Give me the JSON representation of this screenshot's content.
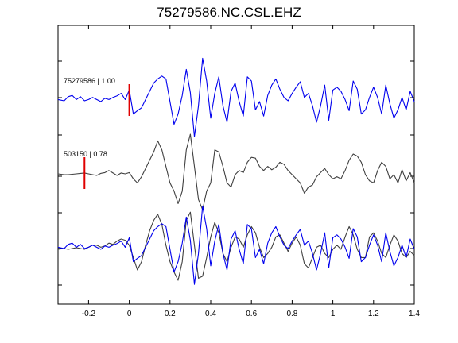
{
  "chart_data": {
    "type": "line",
    "title": "75279586.NC.CSL.EHZ",
    "xlabel": "",
    "ylabel": "",
    "xlim": [
      -0.35,
      1.4
    ],
    "x_ticks": [
      -0.2,
      0,
      0.2,
      0.4,
      0.6,
      0.8,
      1,
      1.2,
      1.4
    ],
    "x_tick_labels": [
      "-0.2",
      "0",
      "0.2",
      "0.4",
      "0.6",
      "0.8",
      "1",
      "1.2",
      "1.4"
    ],
    "grid": false,
    "legend": "none",
    "traces": [
      {
        "label": "75279586 | 1.00",
        "color": "#0000ee",
        "pick_time": 0.0,
        "offset": 3,
        "x": [
          -0.35,
          -0.32,
          -0.3,
          -0.28,
          -0.26,
          -0.24,
          -0.22,
          -0.2,
          -0.18,
          -0.16,
          -0.14,
          -0.12,
          -0.1,
          -0.08,
          -0.06,
          -0.04,
          -0.02,
          0,
          0.02,
          0.04,
          0.06,
          0.08,
          0.1,
          0.12,
          0.14,
          0.16,
          0.18,
          0.2,
          0.22,
          0.24,
          0.26,
          0.28,
          0.3,
          0.32,
          0.34,
          0.36,
          0.38,
          0.4,
          0.42,
          0.44,
          0.46,
          0.48,
          0.5,
          0.52,
          0.54,
          0.56,
          0.58,
          0.6,
          0.62,
          0.64,
          0.66,
          0.68,
          0.7,
          0.72,
          0.74,
          0.76,
          0.78,
          0.8,
          0.82,
          0.84,
          0.86,
          0.88,
          0.9,
          0.92,
          0.94,
          0.96,
          0.98,
          1,
          1.02,
          1.04,
          1.06,
          1.08,
          1.1,
          1.12,
          1.14,
          1.16,
          1.18,
          1.2,
          1.22,
          1.24,
          1.26,
          1.28,
          1.3,
          1.32,
          1.34,
          1.36,
          1.38,
          1.4
        ],
        "y": [
          0.05,
          0.02,
          0.12,
          0.15,
          0.05,
          0.12,
          0.02,
          0.05,
          0.1,
          0.05,
          0.0,
          0.08,
          0.05,
          0.1,
          0.14,
          0.2,
          0.05,
          0.28,
          -0.3,
          -0.22,
          -0.15,
          0.05,
          0.25,
          0.45,
          0.55,
          0.62,
          0.55,
          0.0,
          -0.55,
          -0.3,
          0.15,
          0.78,
          0.22,
          -0.85,
          -0.1,
          1.05,
          0.5,
          -0.4,
          0.2,
          0.6,
          -0.1,
          -0.5,
          0.25,
          0.45,
          0.0,
          -0.35,
          0.6,
          0.5,
          -0.2,
          0.0,
          -0.35,
          0.15,
          0.4,
          0.55,
          0.3,
          0.1,
          0.02,
          0.2,
          0.35,
          0.48,
          0.1,
          0.2,
          -0.1,
          -0.5,
          -0.1,
          0.4,
          -0.45,
          0.28,
          0.35,
          0.25,
          0.05,
          -0.22,
          0.5,
          0.3,
          -0.3,
          -0.2,
          0.1,
          0.35,
          0.1,
          -0.3,
          0.4,
          -0.05,
          -0.4,
          -0.2,
          0.1,
          -0.2,
          0.25,
          0.0
        ]
      },
      {
        "label": "503150 | 0.78",
        "color": "#404040",
        "pick_time": -0.22,
        "offset": 2,
        "x": [
          -0.35,
          -0.32,
          -0.3,
          -0.28,
          -0.26,
          -0.24,
          -0.22,
          -0.2,
          -0.18,
          -0.16,
          -0.14,
          -0.12,
          -0.1,
          -0.08,
          -0.06,
          -0.04,
          -0.02,
          0,
          0.02,
          0.04,
          0.06,
          0.08,
          0.1,
          0.12,
          0.14,
          0.16,
          0.18,
          0.2,
          0.22,
          0.24,
          0.26,
          0.28,
          0.3,
          0.32,
          0.34,
          0.36,
          0.38,
          0.4,
          0.42,
          0.44,
          0.46,
          0.48,
          0.5,
          0.52,
          0.54,
          0.56,
          0.58,
          0.6,
          0.62,
          0.64,
          0.66,
          0.68,
          0.7,
          0.72,
          0.74,
          0.76,
          0.78,
          0.8,
          0.82,
          0.84,
          0.86,
          0.88,
          0.9,
          0.92,
          0.94,
          0.96,
          0.98,
          1,
          1.02,
          1.04,
          1.06,
          1.08,
          1.1,
          1.12,
          1.14,
          1.16,
          1.18,
          1.2,
          1.22,
          1.24,
          1.26,
          1.28,
          1.3,
          1.32,
          1.34,
          1.36,
          1.38,
          1.4
        ],
        "y": [
          0.02,
          0.0,
          0.0,
          0.01,
          0.02,
          0.03,
          0.04,
          0.02,
          0.0,
          -0.02,
          0.03,
          0.05,
          0.1,
          0.04,
          -0.02,
          0.04,
          0.02,
          0.05,
          -0.1,
          -0.2,
          -0.05,
          0.15,
          0.35,
          0.55,
          0.82,
          0.6,
          0.2,
          -0.2,
          -0.4,
          -0.7,
          -0.4,
          0.6,
          0.98,
          0.2,
          -0.6,
          -0.85,
          -0.4,
          -0.2,
          0.6,
          0.55,
          0.2,
          -0.2,
          -0.3,
          0.0,
          0.1,
          0.05,
          0.3,
          0.42,
          0.4,
          0.2,
          0.1,
          0.2,
          0.12,
          0.18,
          0.3,
          0.25,
          0.1,
          0.0,
          -0.1,
          -0.2,
          -0.45,
          -0.3,
          -0.25,
          -0.05,
          0.05,
          0.15,
          0.0,
          -0.1,
          -0.05,
          -0.1,
          0.1,
          0.35,
          0.5,
          0.45,
          0.3,
          0.0,
          -0.15,
          -0.2,
          0.1,
          0.3,
          0.2,
          -0.1,
          0.0,
          -0.2,
          0.12,
          -0.15,
          0.05,
          -0.2
        ]
      },
      {
        "label": "",
        "color": "#0000ee",
        "offset": 1,
        "x": [
          -0.35,
          -0.32,
          -0.3,
          -0.28,
          -0.26,
          -0.24,
          -0.22,
          -0.2,
          -0.18,
          -0.16,
          -0.14,
          -0.12,
          -0.1,
          -0.08,
          -0.06,
          -0.04,
          -0.02,
          0,
          0.02,
          0.04,
          0.06,
          0.08,
          0.1,
          0.12,
          0.14,
          0.16,
          0.18,
          0.2,
          0.22,
          0.24,
          0.26,
          0.28,
          0.3,
          0.32,
          0.34,
          0.36,
          0.38,
          0.4,
          0.42,
          0.44,
          0.46,
          0.48,
          0.5,
          0.52,
          0.54,
          0.56,
          0.58,
          0.6,
          0.62,
          0.64,
          0.66,
          0.68,
          0.7,
          0.72,
          0.74,
          0.76,
          0.78,
          0.8,
          0.82,
          0.84,
          0.86,
          0.88,
          0.9,
          0.92,
          0.94,
          0.96,
          0.98,
          1,
          1.02,
          1.04,
          1.06,
          1.08,
          1.1,
          1.12,
          1.14,
          1.16,
          1.18,
          1.2,
          1.22,
          1.24,
          1.26,
          1.28,
          1.3,
          1.32,
          1.34,
          1.36,
          1.38,
          1.4
        ],
        "y": [
          0.05,
          0.02,
          0.12,
          0.15,
          0.05,
          0.12,
          0.02,
          0.05,
          0.1,
          0.05,
          0.0,
          0.08,
          0.05,
          0.1,
          0.14,
          0.2,
          0.05,
          0.28,
          -0.3,
          -0.22,
          -0.15,
          0.05,
          0.25,
          0.45,
          0.55,
          0.62,
          0.55,
          0.0,
          -0.55,
          -0.3,
          0.15,
          0.78,
          0.22,
          -0.85,
          -0.1,
          1.05,
          0.5,
          -0.4,
          0.2,
          0.6,
          -0.1,
          -0.5,
          0.25,
          0.45,
          0.0,
          -0.35,
          0.6,
          0.5,
          -0.2,
          0.0,
          -0.35,
          0.15,
          0.4,
          0.55,
          0.3,
          0.1,
          0.02,
          0.2,
          0.35,
          0.48,
          0.1,
          0.2,
          -0.1,
          -0.5,
          -0.1,
          0.4,
          -0.45,
          0.28,
          0.35,
          0.25,
          0.05,
          -0.22,
          0.5,
          0.3,
          -0.3,
          -0.2,
          0.1,
          0.35,
          0.1,
          -0.3,
          0.4,
          -0.05,
          -0.4,
          -0.2,
          0.1,
          -0.2,
          0.25,
          0.0
        ]
      },
      {
        "label": "",
        "color": "#404040",
        "offset": 1,
        "x": [
          -0.35,
          -0.32,
          -0.3,
          -0.28,
          -0.26,
          -0.24,
          -0.22,
          -0.2,
          -0.18,
          -0.16,
          -0.14,
          -0.12,
          -0.1,
          -0.08,
          -0.06,
          -0.04,
          -0.02,
          0,
          0.02,
          0.04,
          0.06,
          0.08,
          0.1,
          0.12,
          0.14,
          0.16,
          0.18,
          0.2,
          0.22,
          0.24,
          0.26,
          0.28,
          0.3,
          0.32,
          0.34,
          0.36,
          0.38,
          0.4,
          0.42,
          0.44,
          0.46,
          0.48,
          0.5,
          0.52,
          0.54,
          0.56,
          0.58,
          0.6,
          0.62,
          0.64,
          0.66,
          0.68,
          0.7,
          0.72,
          0.74,
          0.76,
          0.78,
          0.8,
          0.82,
          0.84,
          0.86,
          0.88,
          0.9,
          0.92,
          0.94,
          0.96,
          0.98,
          1,
          1.02,
          1.04,
          1.06,
          1.08,
          1.1,
          1.12,
          1.14,
          1.16,
          1.18,
          1.2,
          1.22,
          1.24,
          1.26,
          1.28,
          1.3,
          1.32,
          1.34,
          1.36,
          1.38,
          1.4
        ],
        "y": [
          0.0,
          0.02,
          0.0,
          0.02,
          0.04,
          0.02,
          0.0,
          0.05,
          0.1,
          0.1,
          0.05,
          0.08,
          0.15,
          0.12,
          0.2,
          0.25,
          0.22,
          0.1,
          -0.2,
          -0.5,
          -0.3,
          0.1,
          0.45,
          0.7,
          0.85,
          0.6,
          0.1,
          -0.3,
          -0.55,
          -0.75,
          -0.3,
          0.7,
          0.9,
          0.1,
          -0.7,
          -0.65,
          -0.2,
          0.3,
          0.65,
          0.4,
          -0.1,
          -0.3,
          0.05,
          0.3,
          0.25,
          0.05,
          0.35,
          0.55,
          0.4,
          0.05,
          -0.2,
          -0.1,
          0.05,
          0.3,
          0.35,
          0.15,
          -0.05,
          0.15,
          0.3,
          0.1,
          -0.35,
          -0.45,
          -0.2,
          0.05,
          0.1,
          -0.1,
          -0.2,
          0.0,
          0.1,
          0.0,
          0.3,
          0.55,
          0.35,
          0.0,
          -0.2,
          -0.2,
          0.3,
          0.4,
          0.2,
          -0.1,
          -0.2,
          0.1,
          0.35,
          0.2,
          -0.1,
          -0.2,
          -0.05,
          -0.15
        ]
      }
    ]
  }
}
